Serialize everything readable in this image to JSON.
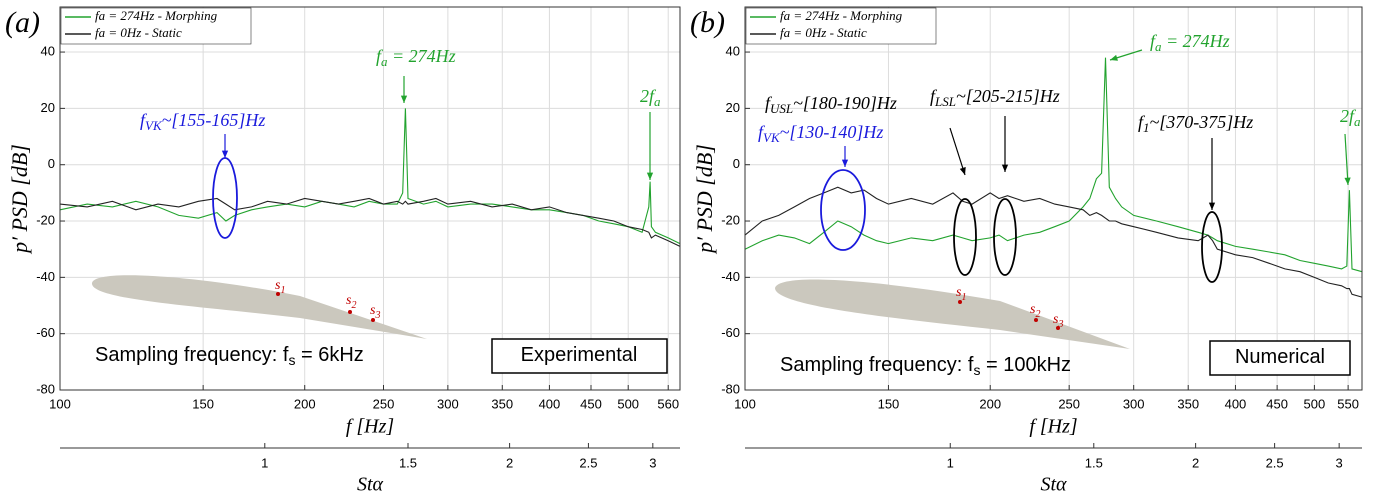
{
  "chart_data": [
    {
      "type": "line",
      "panel_label": "(a)",
      "xlabel": "f [Hz]",
      "ylabel": "p′ PSD [dB]",
      "x2label": "Stα",
      "xscale": "log",
      "xlim": [
        100,
        579
      ],
      "xticks": [
        100,
        150,
        200,
        250,
        300,
        350,
        400,
        450,
        500,
        560
      ],
      "ylim": [
        -80,
        56
      ],
      "yticks": [
        -80,
        -60,
        -40,
        -20,
        0,
        20,
        40
      ],
      "x2lim": [
        0.56,
        3.24
      ],
      "x2ticks": [
        1,
        1.5,
        2,
        2.5,
        3
      ],
      "grid": true,
      "legend": "top-left",
      "x": [
        100,
        108,
        116,
        124,
        132,
        140,
        148,
        156,
        160,
        164,
        172,
        180,
        190,
        200,
        210,
        220,
        230,
        240,
        250,
        260,
        264,
        266,
        268,
        280,
        290,
        300,
        320,
        340,
        360,
        380,
        400,
        420,
        440,
        460,
        480,
        500,
        520,
        530,
        532,
        534,
        540,
        560,
        579
      ],
      "series": [
        {
          "name": "fa = 274Hz - Morphing",
          "color": "#22a32e",
          "values": [
            -16,
            -14,
            -15,
            -13,
            -15,
            -18,
            -19,
            -17,
            -20,
            -18,
            -16,
            -15,
            -14,
            -15,
            -13,
            -14,
            -15,
            -13,
            -14,
            -14,
            -10,
            20,
            -12,
            -14,
            -13,
            -15,
            -14,
            -14,
            -15,
            -16,
            -16,
            -17,
            -18,
            -20,
            -21,
            -22,
            -24,
            -15,
            -6,
            -22,
            -24,
            -26,
            -28
          ]
        },
        {
          "name": "fa = 0Hz - Static",
          "color": "#222222",
          "values": [
            -14,
            -15,
            -13,
            -16,
            -14,
            -15,
            -13,
            -12,
            -14,
            -16,
            -15,
            -13,
            -14,
            -12,
            -13,
            -14,
            -13,
            -12,
            -14,
            -13,
            -14,
            -13,
            -14,
            -13,
            -12,
            -14,
            -13,
            -15,
            -14,
            -16,
            -15,
            -17,
            -18,
            -19,
            -20,
            -22,
            -23,
            -24,
            -25,
            -26,
            -25,
            -27,
            -29
          ]
        }
      ],
      "annotations": [
        {
          "text": "f",
          "sub": "a",
          "tail": " = 274Hz",
          "color": "#22a32e"
        },
        {
          "text": "2f",
          "sub": "a",
          "color": "#22a32e"
        },
        {
          "text": "f",
          "sub": "VK",
          "tail": "~[155-165]Hz",
          "color": "#1a1adc"
        },
        {
          "text": "Sampling frequency:  f",
          "sub": "s",
          "tail": " = 6kHz",
          "color": "#000000"
        },
        {
          "text": "Experimental",
          "color": "#000000"
        },
        {
          "text": "s",
          "sub": "1",
          "color": "#c00000"
        },
        {
          "text": "s",
          "sub": "2",
          "color": "#c00000"
        },
        {
          "text": "s",
          "sub": "3",
          "color": "#c00000"
        }
      ]
    },
    {
      "type": "line",
      "panel_label": "(b)",
      "xlabel": "f [Hz]",
      "ylabel": "p′ PSD [dB]",
      "x2label": "Stα",
      "xscale": "log",
      "xlim": [
        100,
        572
      ],
      "xticks": [
        100,
        150,
        200,
        250,
        300,
        350,
        400,
        450,
        500,
        550
      ],
      "ylim": [
        -80,
        56
      ],
      "yticks": [
        -80,
        -60,
        -40,
        -20,
        0,
        20,
        40
      ],
      "x2lim": [
        0.56,
        3.2
      ],
      "x2ticks": [
        1,
        1.5,
        2,
        2.5,
        3
      ],
      "grid": true,
      "legend": "top-left",
      "x": [
        100,
        105,
        110,
        115,
        120,
        125,
        130,
        135,
        140,
        145,
        150,
        160,
        170,
        180,
        185,
        190,
        200,
        205,
        210,
        220,
        230,
        240,
        250,
        260,
        265,
        270,
        274,
        277,
        280,
        285,
        290,
        300,
        320,
        340,
        360,
        370,
        375,
        380,
        400,
        420,
        440,
        460,
        480,
        500,
        520,
        540,
        548,
        552,
        556,
        572
      ],
      "series": [
        {
          "name": "fa = 274Hz - Morphing",
          "color": "#22a32e",
          "values": [
            -30,
            -27,
            -25,
            -26,
            -28,
            -24,
            -20,
            -22,
            -25,
            -27,
            -28,
            -26,
            -27,
            -25,
            -26,
            -27,
            -26,
            -25,
            -27,
            -25,
            -24,
            -22,
            -20,
            -15,
            -12,
            -5,
            -3,
            38,
            -8,
            -12,
            -15,
            -18,
            -20,
            -22,
            -24,
            -25,
            -26,
            -27,
            -29,
            -30,
            -31,
            -32,
            -34,
            -35,
            -36,
            -37,
            -36,
            -9,
            -37,
            -38
          ]
        },
        {
          "name": "fa = 0Hz - Static",
          "color": "#222222",
          "values": [
            -25,
            -20,
            -18,
            -15,
            -12,
            -10,
            -8,
            -10,
            -9,
            -12,
            -14,
            -12,
            -14,
            -10,
            -13,
            -14,
            -10,
            -12,
            -11,
            -13,
            -12,
            -14,
            -15,
            -16,
            -18,
            -17,
            -18,
            -19,
            -20,
            -20,
            -21,
            -22,
            -24,
            -26,
            -27,
            -25,
            -27,
            -30,
            -32,
            -33,
            -35,
            -37,
            -38,
            -40,
            -42,
            -43,
            -44,
            -44,
            -46,
            -47
          ]
        }
      ],
      "annotations": [
        {
          "text": "f",
          "sub": "a",
          "tail": " = 274Hz",
          "color": "#22a32e"
        },
        {
          "text": "2f",
          "sub": "a",
          "color": "#22a32e"
        },
        {
          "text": "f",
          "sub": "USL",
          "tail": "~[180-190]Hz",
          "color": "#000000"
        },
        {
          "text": "f",
          "sub": "LSL",
          "tail": "~[205-215]Hz",
          "color": "#000000"
        },
        {
          "text": "f",
          "sub": "1",
          "tail": "~[370-375]Hz",
          "color": "#000000"
        },
        {
          "text": "f",
          "sub": "VK",
          "tail": "~[130-140]Hz",
          "color": "#1a1adc"
        },
        {
          "text": "Sampling frequency:  f",
          "sub": "s",
          "tail": " = 100kHz",
          "color": "#000000"
        },
        {
          "text": "Numerical",
          "color": "#000000"
        },
        {
          "text": "s",
          "sub": "1",
          "color": "#c00000"
        },
        {
          "text": "s",
          "sub": "2",
          "color": "#c00000"
        },
        {
          "text": "s",
          "sub": "3",
          "color": "#c00000"
        }
      ]
    }
  ]
}
